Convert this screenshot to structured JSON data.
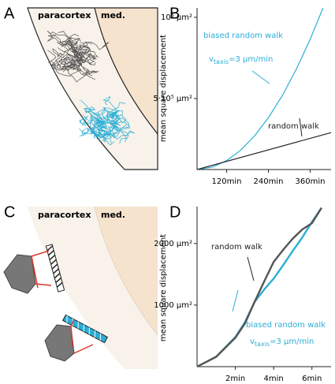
{
  "panels": [
    "A",
    "B",
    "C",
    "D"
  ],
  "diagrams": [
    {
      "regions": [
        "paracortex",
        "med."
      ]
    },
    {
      "regions": [
        "paracortex",
        "med."
      ]
    }
  ],
  "chart_data": [
    {
      "type": "line",
      "y_label": "mean square displacement",
      "xlim": [
        35,
        420
      ],
      "xticks": [
        {
          "value": 120,
          "label": "120min"
        },
        {
          "value": 240,
          "label": "240min"
        },
        {
          "value": 360,
          "label": "360min"
        }
      ],
      "ylim": [
        63000,
        1058000
      ],
      "yticks": [
        {
          "value": 500000,
          "label": "5·10⁵ μm²"
        },
        {
          "value": 1000000,
          "label": "10⁶ μm²"
        }
      ],
      "series": [
        {
          "color": "#2aaed6",
          "x": [
            35,
            80,
            120,
            160,
            200,
            240,
            280,
            320,
            360,
            397
          ],
          "values": [
            63000,
            78400,
            117800,
            181600,
            269600,
            382000,
            518600,
            679500,
            864700,
            1057600
          ]
        },
        {
          "color": "#222222",
          "x": [
            35,
            420
          ],
          "values": [
            63000,
            290000
          ]
        }
      ],
      "annotations": [
        {
          "text": "biased random walk",
          "color": "#2aaed6"
        },
        {
          "base": "v",
          "sub": "taxis",
          "rest": "=3 μm/min",
          "color": "#2aaed6"
        },
        {
          "text": "random walk",
          "color": "#222222"
        }
      ]
    },
    {
      "type": "line",
      "y_label": "mean square displacement",
      "xlim": [
        0,
        7
      ],
      "xticks": [
        {
          "value": 2,
          "label": "2min"
        },
        {
          "value": 4,
          "label": "4min"
        },
        {
          "value": 6,
          "label": "6min"
        }
      ],
      "ylim": [
        0,
        2600
      ],
      "yticks": [
        {
          "value": 1000,
          "label": "1000 μm²"
        },
        {
          "value": 2000,
          "label": "2000 μm²"
        }
      ],
      "x": [
        0,
        1,
        2,
        2.5,
        3,
        3.5,
        4,
        4.5,
        5,
        5.5,
        6,
        6.5
      ],
      "series": [
        {
          "color": "#2aaed6",
          "values": [
            0,
            160,
            480,
            720,
            1050,
            1250,
            1430,
            1650,
            1880,
            2100,
            2350,
            2580
          ]
        },
        {
          "color": "#555555",
          "values": [
            0,
            160,
            470,
            700,
            1050,
            1380,
            1700,
            1900,
            2080,
            2230,
            2330,
            2580
          ]
        }
      ],
      "annotations": [
        {
          "text": "random walk",
          "color": "#222222"
        },
        {
          "text": "biased random walk",
          "color": "#2aaed6"
        },
        {
          "base": "v",
          "sub": "taxis",
          "rest": "=3 μm/min",
          "color": "#2aaed6"
        }
      ]
    }
  ]
}
